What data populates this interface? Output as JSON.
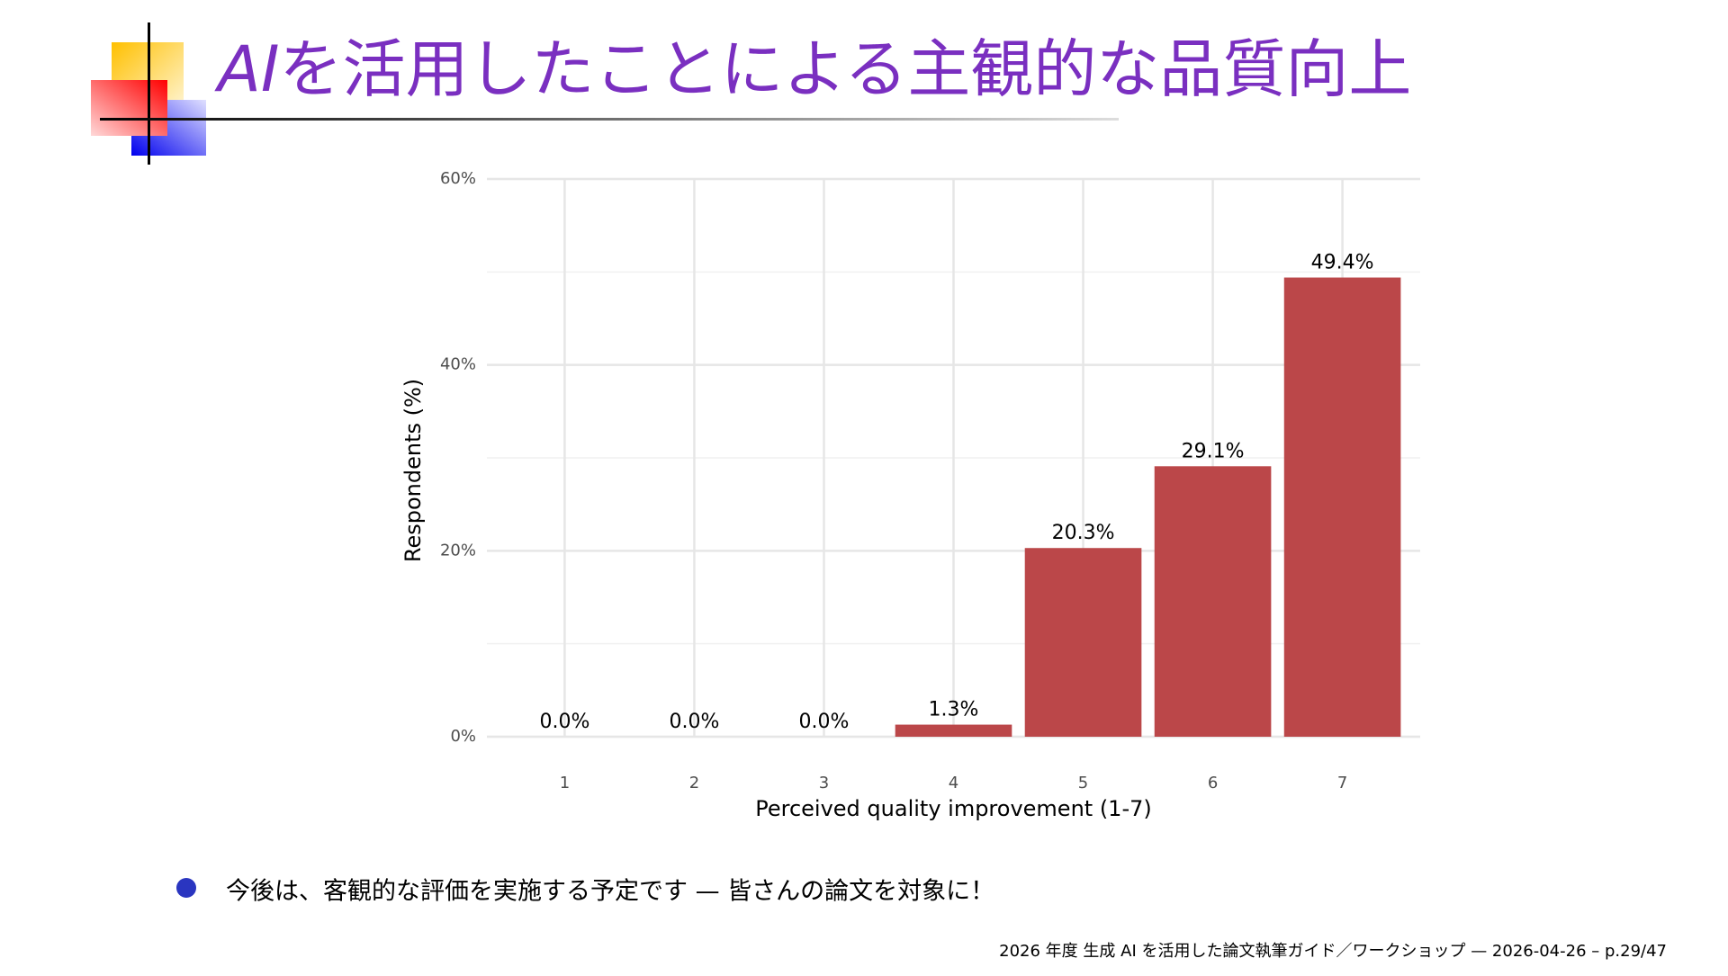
{
  "header": {
    "title_em": "AI",
    "title_rest": "を活用したことによる主観的な品質向上"
  },
  "chart_data": {
    "type": "bar",
    "x_label": "Perceived quality improvement (1-7)",
    "y_label": "Respondents (%)",
    "categories": [
      "1",
      "2",
      "3",
      "4",
      "5",
      "6",
      "7"
    ],
    "values": [
      0.0,
      0.0,
      0.0,
      1.3,
      20.3,
      29.1,
      49.4
    ],
    "value_labels": [
      "0.0%",
      "0.0%",
      "0.0%",
      "1.3%",
      "20.3%",
      "29.1%",
      "49.4%"
    ],
    "color": "#bb4749",
    "ylim": [
      0,
      60
    ],
    "yticks": [
      {
        "value": 0,
        "label": "0%"
      },
      {
        "value": 20,
        "label": "20%"
      },
      {
        "value": 40,
        "label": "40%"
      },
      {
        "value": 60,
        "label": "60%"
      }
    ],
    "minor_yticks": [
      10,
      30,
      50
    ],
    "grid": true
  },
  "bullets": [
    "今後は、客観的な評価を実施する予定です — 皆さんの論文を対象に！"
  ],
  "footer": "2026 年度 生成 AI を活用した論文執筆ガイド／ワークショップ — 2026-04-26 – p.29/47"
}
